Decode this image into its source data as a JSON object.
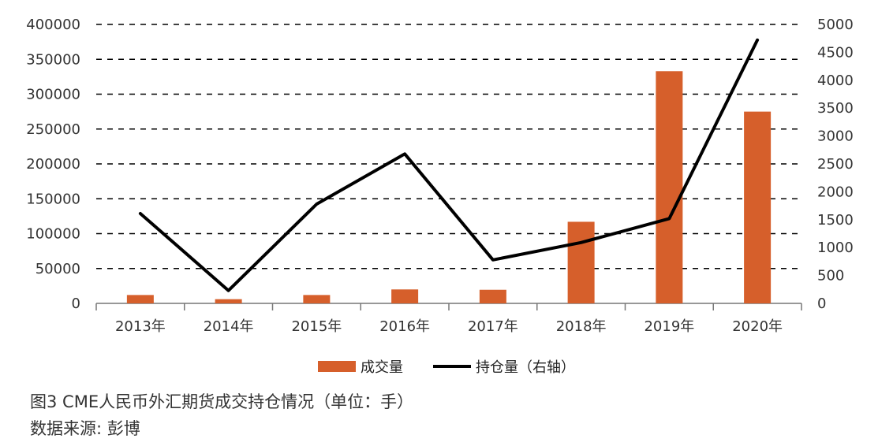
{
  "chart_data": {
    "type": "bar+line",
    "categories": [
      "2013年",
      "2014年",
      "2015年",
      "2016年",
      "2017年",
      "2018年",
      "2019年",
      "2020年"
    ],
    "series": [
      {
        "name": "成交量",
        "type": "bar",
        "axis": "left",
        "color": "#d65f2b",
        "values": [
          12000,
          6000,
          12000,
          20000,
          19500,
          117000,
          333000,
          275000
        ]
      },
      {
        "name": "持仓量（右轴）",
        "type": "line",
        "axis": "right",
        "color": "#000000",
        "values": [
          1610,
          230,
          1780,
          2680,
          780,
          1090,
          1520,
          4720
        ]
      }
    ],
    "y_left": {
      "min": 0,
      "max": 400000,
      "step": 50000,
      "ticks": [
        "0",
        "50000",
        "100000",
        "150000",
        "200000",
        "250000",
        "300000",
        "350000",
        "400000"
      ]
    },
    "y_right": {
      "min": 0,
      "max": 5000,
      "step": 500,
      "ticks": [
        "0",
        "500",
        "1000",
        "1500",
        "2000",
        "2500",
        "3000",
        "3500",
        "4000",
        "4500",
        "5000"
      ]
    },
    "grid": "dashed-horizontal",
    "legend_position": "bottom"
  },
  "legend": {
    "bar_label": "成交量",
    "line_label": "持仓量（右轴）"
  },
  "caption": {
    "title": "图3 CME人民币外汇期货成交持仓情况（单位：手）",
    "source": "数据来源: 彭博"
  }
}
